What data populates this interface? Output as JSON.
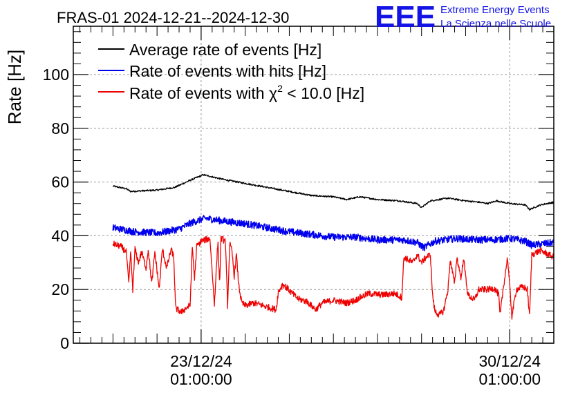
{
  "chart_data": {
    "type": "line",
    "title": "FRAS-01 2024-12-21--2024-12-30",
    "logo_text": "EEE",
    "brand_line1": "Extreme Energy Events",
    "brand_line2": "La Scienza nelle Scuole",
    "ylabel": "Rate [Hz]",
    "xlabel": "",
    "ylim": [
      0,
      118
    ],
    "xlim_days": [
      -0.9,
      10.0
    ],
    "grid": true,
    "legend_position": "top-left",
    "legend": {
      "avg_label": "Average rate of events [Hz]",
      "hits_label": "Rate of events with hits [Hz]",
      "chi_label_pre": "Rate of events with χ",
      "chi_label_sup": "2",
      "chi_label_post": " < 10.0 [Hz]"
    },
    "y_ticks": [
      {
        "value": 0,
        "label": "0"
      },
      {
        "value": 20,
        "label": "20"
      },
      {
        "value": 40,
        "label": "40"
      },
      {
        "value": 60,
        "label": "60"
      },
      {
        "value": 80,
        "label": "80"
      },
      {
        "value": 100,
        "label": "100"
      }
    ],
    "x_ticks": [
      {
        "day": 2,
        "date": "23/12/24",
        "time": "01:00:00"
      },
      {
        "day": 9,
        "date": "30/12/24",
        "time": "01:00:00"
      }
    ],
    "colors": {
      "avg": "#000000",
      "hits": "#0000ee",
      "chi": "#ee0000",
      "brand": "#1414e6",
      "grid": "#999999"
    },
    "series": [
      {
        "name": "avg",
        "color": "#000000",
        "noise": 0.3,
        "points": [
          [
            0.0,
            58.5
          ],
          [
            0.3,
            57.5
          ],
          [
            0.4,
            56.5
          ],
          [
            1.0,
            57.0
          ],
          [
            1.4,
            58.0
          ],
          [
            1.8,
            61.0
          ],
          [
            2.05,
            62.7
          ],
          [
            2.5,
            61.0
          ],
          [
            3.0,
            59.5
          ],
          [
            3.5,
            58.0
          ],
          [
            4.0,
            56.5
          ],
          [
            4.5,
            55.0
          ],
          [
            5.0,
            54.5
          ],
          [
            5.3,
            53.5
          ],
          [
            5.6,
            54.5
          ],
          [
            6.0,
            53.5
          ],
          [
            6.5,
            53.0
          ],
          [
            6.9,
            52.0
          ],
          [
            7.0,
            50.5
          ],
          [
            7.2,
            53.0
          ],
          [
            7.6,
            54.0
          ],
          [
            8.0,
            53.0
          ],
          [
            8.3,
            52.5
          ],
          [
            8.5,
            52.0
          ],
          [
            8.7,
            53.0
          ],
          [
            9.0,
            52.0
          ],
          [
            9.35,
            51.5
          ],
          [
            9.45,
            49.8
          ],
          [
            9.7,
            51.5
          ],
          [
            10.0,
            52.5
          ]
        ]
      },
      {
        "name": "hits",
        "color": "#0000ee",
        "noise": 1.3,
        "points": [
          [
            0.0,
            43.0
          ],
          [
            0.5,
            41.5
          ],
          [
            1.0,
            41.0
          ],
          [
            1.5,
            42.5
          ],
          [
            1.8,
            45.0
          ],
          [
            2.1,
            46.5
          ],
          [
            2.5,
            45.5
          ],
          [
            3.0,
            44.5
          ],
          [
            3.5,
            43.0
          ],
          [
            4.0,
            41.5
          ],
          [
            4.5,
            40.5
          ],
          [
            5.0,
            39.5
          ],
          [
            5.5,
            39.5
          ],
          [
            6.0,
            38.5
          ],
          [
            6.6,
            38.5
          ],
          [
            6.9,
            37.5
          ],
          [
            7.05,
            35.5
          ],
          [
            7.3,
            38.0
          ],
          [
            7.8,
            39.0
          ],
          [
            8.2,
            38.5
          ],
          [
            8.6,
            38.5
          ],
          [
            9.0,
            39.0
          ],
          [
            9.35,
            38.0
          ],
          [
            9.5,
            36.5
          ],
          [
            10.0,
            37.5
          ]
        ]
      },
      {
        "name": "chi",
        "color": "#ee0000",
        "noise": 1.2,
        "points": [
          [
            0.0,
            37.0
          ],
          [
            0.18,
            36.0
          ],
          [
            0.3,
            34.0
          ],
          [
            0.36,
            22.0
          ],
          [
            0.4,
            34.0
          ],
          [
            0.45,
            20.0
          ],
          [
            0.5,
            35.0
          ],
          [
            0.58,
            30.0
          ],
          [
            0.65,
            34.0
          ],
          [
            0.75,
            28.0
          ],
          [
            0.8,
            35.0
          ],
          [
            0.88,
            22.0
          ],
          [
            0.95,
            34.0
          ],
          [
            1.05,
            20.0
          ],
          [
            1.12,
            35.0
          ],
          [
            1.22,
            28.0
          ],
          [
            1.32,
            35.0
          ],
          [
            1.38,
            32.0
          ],
          [
            1.42,
            13.0
          ],
          [
            1.55,
            11.5
          ],
          [
            1.65,
            13.0
          ],
          [
            1.75,
            14.0
          ],
          [
            1.8,
            36.0
          ],
          [
            1.85,
            24.0
          ],
          [
            1.9,
            36.0
          ],
          [
            2.0,
            38.0
          ],
          [
            2.2,
            39.0
          ],
          [
            2.3,
            14.5
          ],
          [
            2.38,
            38.0
          ],
          [
            2.42,
            22.0
          ],
          [
            2.45,
            39.0
          ],
          [
            2.55,
            38.0
          ],
          [
            2.6,
            14.0
          ],
          [
            2.65,
            37.0
          ],
          [
            2.7,
            34.0
          ],
          [
            2.75,
            25.0
          ],
          [
            2.8,
            33.0
          ],
          [
            2.85,
            22.0
          ],
          [
            2.92,
            15.0
          ],
          [
            3.0,
            14.0
          ],
          [
            3.2,
            15.0
          ],
          [
            3.4,
            14.0
          ],
          [
            3.6,
            13.0
          ],
          [
            3.7,
            12.5
          ],
          [
            3.75,
            19.0
          ],
          [
            3.85,
            22.0
          ],
          [
            3.95,
            20.5
          ],
          [
            4.1,
            18.0
          ],
          [
            4.2,
            16.5
          ],
          [
            4.4,
            15.5
          ],
          [
            4.6,
            12.5
          ],
          [
            4.75,
            15.0
          ],
          [
            5.0,
            16.0
          ],
          [
            5.3,
            15.0
          ],
          [
            5.5,
            16.0
          ],
          [
            5.6,
            17.0
          ],
          [
            5.8,
            18.5
          ],
          [
            6.1,
            18.0
          ],
          [
            6.4,
            18.5
          ],
          [
            6.55,
            17.0
          ],
          [
            6.6,
            32.0
          ],
          [
            6.8,
            30.0
          ],
          [
            6.9,
            33.0
          ],
          [
            7.0,
            30.0
          ],
          [
            7.1,
            32.0
          ],
          [
            7.2,
            33.0
          ],
          [
            7.25,
            18.0
          ],
          [
            7.3,
            12.0
          ],
          [
            7.4,
            10.5
          ],
          [
            7.5,
            12.0
          ],
          [
            7.6,
            20.0
          ],
          [
            7.65,
            31.0
          ],
          [
            7.75,
            22.0
          ],
          [
            7.8,
            32.0
          ],
          [
            7.9,
            24.0
          ],
          [
            7.95,
            32.0
          ],
          [
            8.05,
            18.0
          ],
          [
            8.2,
            16.0
          ],
          [
            8.3,
            20.0
          ],
          [
            8.5,
            20.0
          ],
          [
            8.65,
            20.5
          ],
          [
            8.75,
            18.0
          ],
          [
            8.78,
            10.0
          ],
          [
            8.85,
            20.0
          ],
          [
            8.95,
            32.0
          ],
          [
            9.05,
            10.0
          ],
          [
            9.15,
            20.0
          ],
          [
            9.3,
            21.0
          ],
          [
            9.4,
            20.0
          ],
          [
            9.45,
            10.0
          ],
          [
            9.5,
            33.0
          ],
          [
            9.7,
            34.5
          ],
          [
            10.0,
            32.0
          ]
        ]
      }
    ]
  }
}
